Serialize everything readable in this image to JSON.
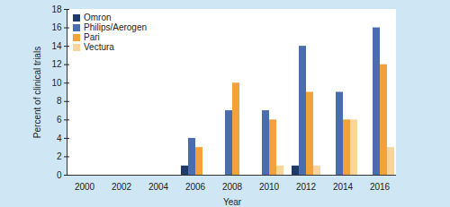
{
  "chart_data": {
    "type": "bar",
    "xlabel": "Year",
    "ylabel": "Percent of clinical trials",
    "categories": [
      "2000",
      "2002",
      "2004",
      "2006",
      "2008",
      "2010",
      "2012",
      "2014",
      "2016"
    ],
    "series": [
      {
        "name": "Omron",
        "color": "#1d3a6b",
        "values": [
          0,
          0,
          0,
          1,
          0,
          0,
          1,
          0,
          0
        ]
      },
      {
        "name": "Philips/Aerogen",
        "color": "#4a6db0",
        "values": [
          0,
          0,
          0,
          4,
          7,
          7,
          14,
          9,
          16
        ]
      },
      {
        "name": "Pari",
        "color": "#f2a23a",
        "values": [
          0,
          0,
          0,
          3,
          10,
          6,
          9,
          6,
          12
        ]
      },
      {
        "name": "Vectura",
        "color": "#f9d49b",
        "values": [
          0,
          0,
          0,
          0,
          0,
          1,
          1,
          6,
          3
        ]
      }
    ],
    "ylim": [
      0,
      18
    ],
    "yticks": [
      0,
      2,
      4,
      6,
      8,
      10,
      12,
      14,
      16,
      18
    ],
    "legend": "upper left"
  }
}
